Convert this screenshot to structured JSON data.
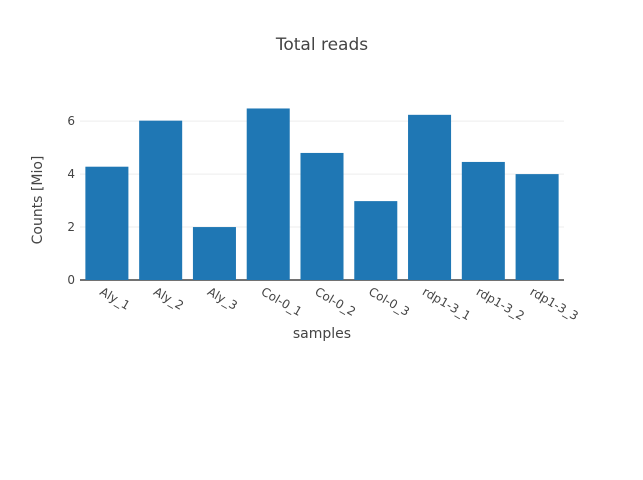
{
  "chart_data": {
    "type": "bar",
    "title": "Total reads",
    "xlabel": "samples",
    "ylabel": "Counts [Mio]",
    "categories": [
      "Aly_1",
      "Aly_2",
      "Aly_3",
      "Col-0_1",
      "Col-0_2",
      "Col-0_3",
      "rdp1-3_1",
      "rdp1-3_2",
      "rdp1-3_3"
    ],
    "values": [
      4.28,
      6.02,
      2.0,
      6.48,
      4.8,
      2.98,
      6.24,
      4.46,
      4.0
    ],
    "ylim": [
      0,
      6.8
    ],
    "yticks": [
      0,
      2,
      4,
      6
    ],
    "grid": true,
    "bar_color": "#1f77b4"
  }
}
